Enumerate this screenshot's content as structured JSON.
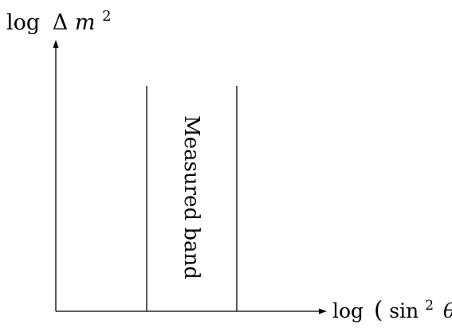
{
  "y_axis": {
    "label_prefix": "log",
    "label_delta": "Δ",
    "label_var": "m",
    "label_exp": "2"
  },
  "x_axis": {
    "label_prefix": "log",
    "label_open": "(",
    "label_func": "sin",
    "label_exp": "2",
    "label_var": "θ",
    "label_close": ")"
  },
  "band": {
    "label": "Measured band"
  }
}
